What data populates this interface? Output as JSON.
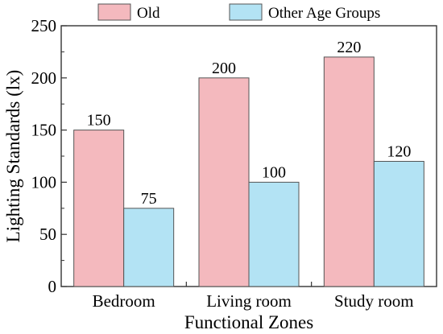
{
  "chart_data": {
    "type": "bar",
    "categories": [
      "Bedroom",
      "Living room",
      "Study room"
    ],
    "series": [
      {
        "name": "Old",
        "values": [
          150,
          200,
          220
        ]
      },
      {
        "name": "Other Age Groups",
        "values": [
          75,
          100,
          120
        ]
      }
    ],
    "data_labels": [
      [
        "150",
        "200",
        "220"
      ],
      [
        "75",
        "100",
        "120"
      ]
    ],
    "xlabel": "Functional Zones",
    "ylabel": "Lighting Standards (lx)",
    "ylim": [
      0,
      250
    ],
    "yticks": [
      "0",
      "50",
      "100",
      "150",
      "200",
      "250"
    ],
    "legend_position": "top",
    "grid": false,
    "colors": {
      "Old": "#f4b9be",
      "Other Age Groups": "#b3e3f4",
      "edge": "#555555"
    }
  }
}
